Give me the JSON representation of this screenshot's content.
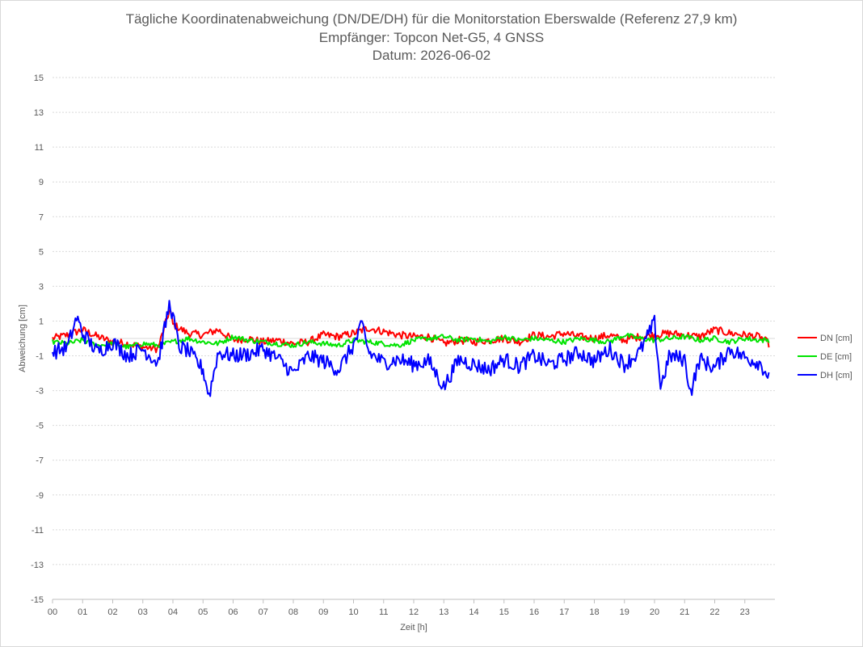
{
  "chart_data": {
    "type": "line",
    "title": [
      "Tägliche Koordinatenabweichung (DN/DE/DH) für die Monitorstation Eberswalde (Referenz 27,9 km)",
      "Empfänger: Topcon Net-G5, 4 GNSS",
      "Datum: 2026-06-02"
    ],
    "xlabel": "Zeit [h]",
    "ylabel": "Abweichung [cm]",
    "xlim": [
      0,
      24
    ],
    "ylim": [
      -15,
      15
    ],
    "x_ticks": [
      "00",
      "01",
      "02",
      "03",
      "04",
      "05",
      "06",
      "07",
      "08",
      "09",
      "10",
      "11",
      "12",
      "13",
      "14",
      "15",
      "16",
      "17",
      "18",
      "19",
      "20",
      "21",
      "22",
      "23"
    ],
    "y_ticks": [
      15,
      13,
      11,
      9,
      7,
      5,
      3,
      1,
      -1,
      -3,
      -5,
      -7,
      -9,
      -11,
      -13,
      -15
    ],
    "grid": true,
    "legend_position": "right",
    "series": [
      {
        "name": "DN [cm]",
        "color": "#ff0000",
        "x": [
          0,
          0.5,
          1,
          1.5,
          2,
          2.5,
          3,
          3.5,
          3.9,
          4,
          4.5,
          5,
          5.5,
          6,
          6.5,
          7,
          7.5,
          8,
          8.5,
          9,
          9.5,
          10,
          10.5,
          11,
          11.5,
          12,
          12.5,
          13,
          13.5,
          14,
          14.5,
          15,
          15.5,
          16,
          16.5,
          17,
          17.5,
          18,
          18.5,
          19,
          19.5,
          20,
          20.5,
          21,
          21.5,
          22,
          22.5,
          23,
          23.5,
          23.8
        ],
        "values": [
          0,
          0.2,
          0.5,
          0.1,
          -0.2,
          -0.3,
          -0.5,
          -0.6,
          1.7,
          0.8,
          0.3,
          0.2,
          0.5,
          -0.1,
          0,
          -0.2,
          -0.1,
          -0.3,
          -0.2,
          0.2,
          0.1,
          0.3,
          0.6,
          0.4,
          0.2,
          0.1,
          0.1,
          -0.3,
          -0.1,
          -0.2,
          -0.1,
          0,
          -0.2,
          0.2,
          0.1,
          0.3,
          0.1,
          0,
          0.2,
          -0.1,
          0.1,
          0.2,
          0.3,
          0.2,
          0.1,
          0.5,
          0.3,
          0.2,
          0.1,
          -0.3
        ]
      },
      {
        "name": "DE [cm]",
        "color": "#00e400",
        "x": [
          0,
          0.5,
          1,
          1.5,
          2,
          2.5,
          3,
          3.5,
          4,
          4.5,
          5,
          5.5,
          6,
          6.5,
          7,
          7.5,
          8,
          8.5,
          9,
          9.5,
          10,
          10.5,
          11,
          11.5,
          12,
          12.5,
          13,
          13.5,
          14,
          14.5,
          15,
          15.5,
          16,
          16.5,
          17,
          17.5,
          18,
          18.5,
          19,
          19.5,
          20,
          20.5,
          21,
          21.5,
          22,
          22.5,
          23,
          23.5,
          23.8
        ],
        "values": [
          -0.2,
          -0.3,
          -0.1,
          -0.4,
          -0.3,
          -0.5,
          -0.3,
          -0.4,
          -0.2,
          0,
          -0.2,
          -0.3,
          0.1,
          -0.1,
          -0.2,
          -0.3,
          -0.4,
          -0.2,
          -0.3,
          -0.4,
          -0.1,
          -0.2,
          -0.3,
          -0.4,
          -0.1,
          0,
          0.1,
          -0.1,
          0,
          -0.2,
          0.1,
          -0.1,
          0,
          -0.1,
          -0.2,
          0,
          -0.1,
          -0.2,
          0.2,
          0,
          -0.1,
          0,
          0.1,
          -0.1,
          0,
          -0.2,
          0,
          -0.1,
          -0.1
        ]
      },
      {
        "name": "DH [cm]",
        "color": "#0000ff",
        "x": [
          0,
          0.5,
          0.8,
          1,
          1.5,
          2,
          2.5,
          3,
          3.5,
          3.9,
          4.2,
          4.5,
          5,
          5.2,
          5.5,
          6,
          6.5,
          7,
          7.5,
          8,
          8.5,
          9,
          9.5,
          10,
          10.3,
          10.5,
          11,
          11.5,
          12,
          12.5,
          13,
          13.5,
          14,
          14.5,
          15,
          15.5,
          16,
          16.5,
          17,
          17.5,
          18,
          18.5,
          19,
          19.5,
          20,
          20.2,
          20.5,
          21,
          21.2,
          21.5,
          22,
          22.5,
          23,
          23.5,
          23.8
        ],
        "values": [
          -0.8,
          -0.5,
          1.2,
          0.3,
          -0.8,
          -0.2,
          -1,
          -0.6,
          -1.4,
          2.1,
          -0.5,
          -0.7,
          -1.8,
          -3.3,
          -0.8,
          -1,
          -0.9,
          -0.6,
          -1.2,
          -2,
          -1,
          -1.3,
          -1.8,
          -0.4,
          0.8,
          -0.8,
          -1.4,
          -1.2,
          -1.5,
          -1.3,
          -2.8,
          -1.2,
          -1.5,
          -1.8,
          -1.2,
          -1.6,
          -1,
          -1.5,
          -1.2,
          -0.8,
          -1.3,
          -0.6,
          -1.5,
          -0.8,
          0.9,
          -2.8,
          -1,
          -1.2,
          -3.1,
          -1.2,
          -1.7,
          -0.6,
          -1.1,
          -1.4,
          -2.2
        ]
      }
    ]
  }
}
